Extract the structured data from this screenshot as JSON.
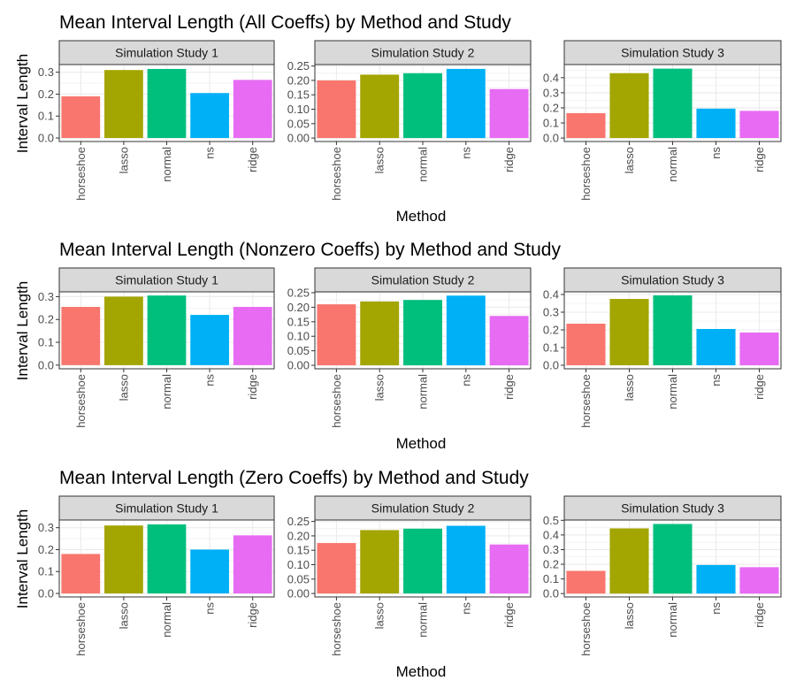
{
  "chart_data": [
    {
      "type": "bar",
      "title": "Mean Interval Length (All Coeffs) by Method and Study",
      "xlabel": "Method",
      "ylabel": "Interval Length",
      "categories": [
        "horseshoe",
        "lasso",
        "normal",
        "ns",
        "ridge"
      ],
      "panels": [
        {
          "strip": "Simulation Study 1",
          "values": [
            0.19,
            0.31,
            0.315,
            0.205,
            0.265
          ],
          "ylim": [
            -0.016,
            0.335
          ],
          "yticks": [
            0.0,
            0.1,
            0.2,
            0.3
          ],
          "tick_labels": [
            "0.0",
            "0.1",
            "0.2",
            "0.3"
          ]
        },
        {
          "strip": "Simulation Study 2",
          "values": [
            0.2,
            0.22,
            0.225,
            0.24,
            0.17
          ],
          "ylim": [
            -0.012,
            0.255
          ],
          "yticks": [
            0.0,
            0.05,
            0.1,
            0.15,
            0.2,
            0.25
          ],
          "tick_labels": [
            "0.00",
            "0.05",
            "0.10",
            "0.15",
            "0.20",
            "0.25"
          ]
        },
        {
          "strip": "Simulation Study 3",
          "values": [
            0.165,
            0.43,
            0.46,
            0.195,
            0.18
          ],
          "ylim": [
            -0.023,
            0.487
          ],
          "yticks": [
            0.0,
            0.1,
            0.2,
            0.3,
            0.4
          ],
          "tick_labels": [
            "0.0",
            "0.1",
            "0.2",
            "0.3",
            "0.4"
          ]
        }
      ]
    },
    {
      "type": "bar",
      "title": "Mean Interval Length (Nonzero Coeffs) by Method and Study",
      "xlabel": "Method",
      "ylabel": "Interval Length",
      "categories": [
        "horseshoe",
        "lasso",
        "normal",
        "ns",
        "ridge"
      ],
      "panels": [
        {
          "strip": "Simulation Study 1",
          "values": [
            0.255,
            0.3,
            0.305,
            0.22,
            0.255
          ],
          "ylim": [
            -0.016,
            0.321
          ],
          "yticks": [
            0.0,
            0.1,
            0.2,
            0.3
          ],
          "tick_labels": [
            "0.0",
            "0.1",
            "0.2",
            "0.3"
          ]
        },
        {
          "strip": "Simulation Study 2",
          "values": [
            0.21,
            0.22,
            0.225,
            0.24,
            0.17
          ],
          "ylim": [
            -0.012,
            0.253
          ],
          "yticks": [
            0.0,
            0.05,
            0.1,
            0.15,
            0.2,
            0.25
          ],
          "tick_labels": [
            "0.00",
            "0.05",
            "0.10",
            "0.15",
            "0.20",
            "0.25"
          ]
        },
        {
          "strip": "Simulation Study 3",
          "values": [
            0.235,
            0.375,
            0.395,
            0.205,
            0.185
          ],
          "ylim": [
            -0.02,
            0.415
          ],
          "yticks": [
            0.0,
            0.1,
            0.2,
            0.3,
            0.4
          ],
          "tick_labels": [
            "0.0",
            "0.1",
            "0.2",
            "0.3",
            "0.4"
          ]
        }
      ]
    },
    {
      "type": "bar",
      "title": "Mean Interval Length (Zero Coeffs) by Method and Study",
      "xlabel": "Method",
      "ylabel": "Interval Length",
      "categories": [
        "horseshoe",
        "lasso",
        "normal",
        "ns",
        "ridge"
      ],
      "panels": [
        {
          "strip": "Simulation Study 1",
          "values": [
            0.18,
            0.31,
            0.315,
            0.2,
            0.265
          ],
          "ylim": [
            -0.016,
            0.335
          ],
          "yticks": [
            0.0,
            0.1,
            0.2,
            0.3
          ],
          "tick_labels": [
            "0.0",
            "0.1",
            "0.2",
            "0.3"
          ]
        },
        {
          "strip": "Simulation Study 2",
          "values": [
            0.175,
            0.22,
            0.225,
            0.235,
            0.17
          ],
          "ylim": [
            -0.012,
            0.255
          ],
          "yticks": [
            0.0,
            0.05,
            0.1,
            0.15,
            0.2,
            0.25
          ],
          "tick_labels": [
            "0.00",
            "0.05",
            "0.10",
            "0.15",
            "0.20",
            "0.25"
          ]
        },
        {
          "strip": "Simulation Study 3",
          "values": [
            0.155,
            0.445,
            0.475,
            0.195,
            0.18
          ],
          "ylim": [
            -0.023,
            0.502
          ],
          "yticks": [
            0.0,
            0.1,
            0.2,
            0.3,
            0.4,
            0.5
          ],
          "tick_labels": [
            "0.0",
            "0.1",
            "0.2",
            "0.3",
            "0.4",
            "0.5"
          ]
        }
      ]
    }
  ],
  "colors": {
    "horseshoe": "#F8766D",
    "lasso": "#A3A500",
    "normal": "#00BF7D",
    "ns": "#00B0F6",
    "ridge": "#E76BF3",
    "strip_fill": "#d9d9d9",
    "panel_border": "#333333",
    "grid": "#ebebeb",
    "tick": "#333333"
  }
}
